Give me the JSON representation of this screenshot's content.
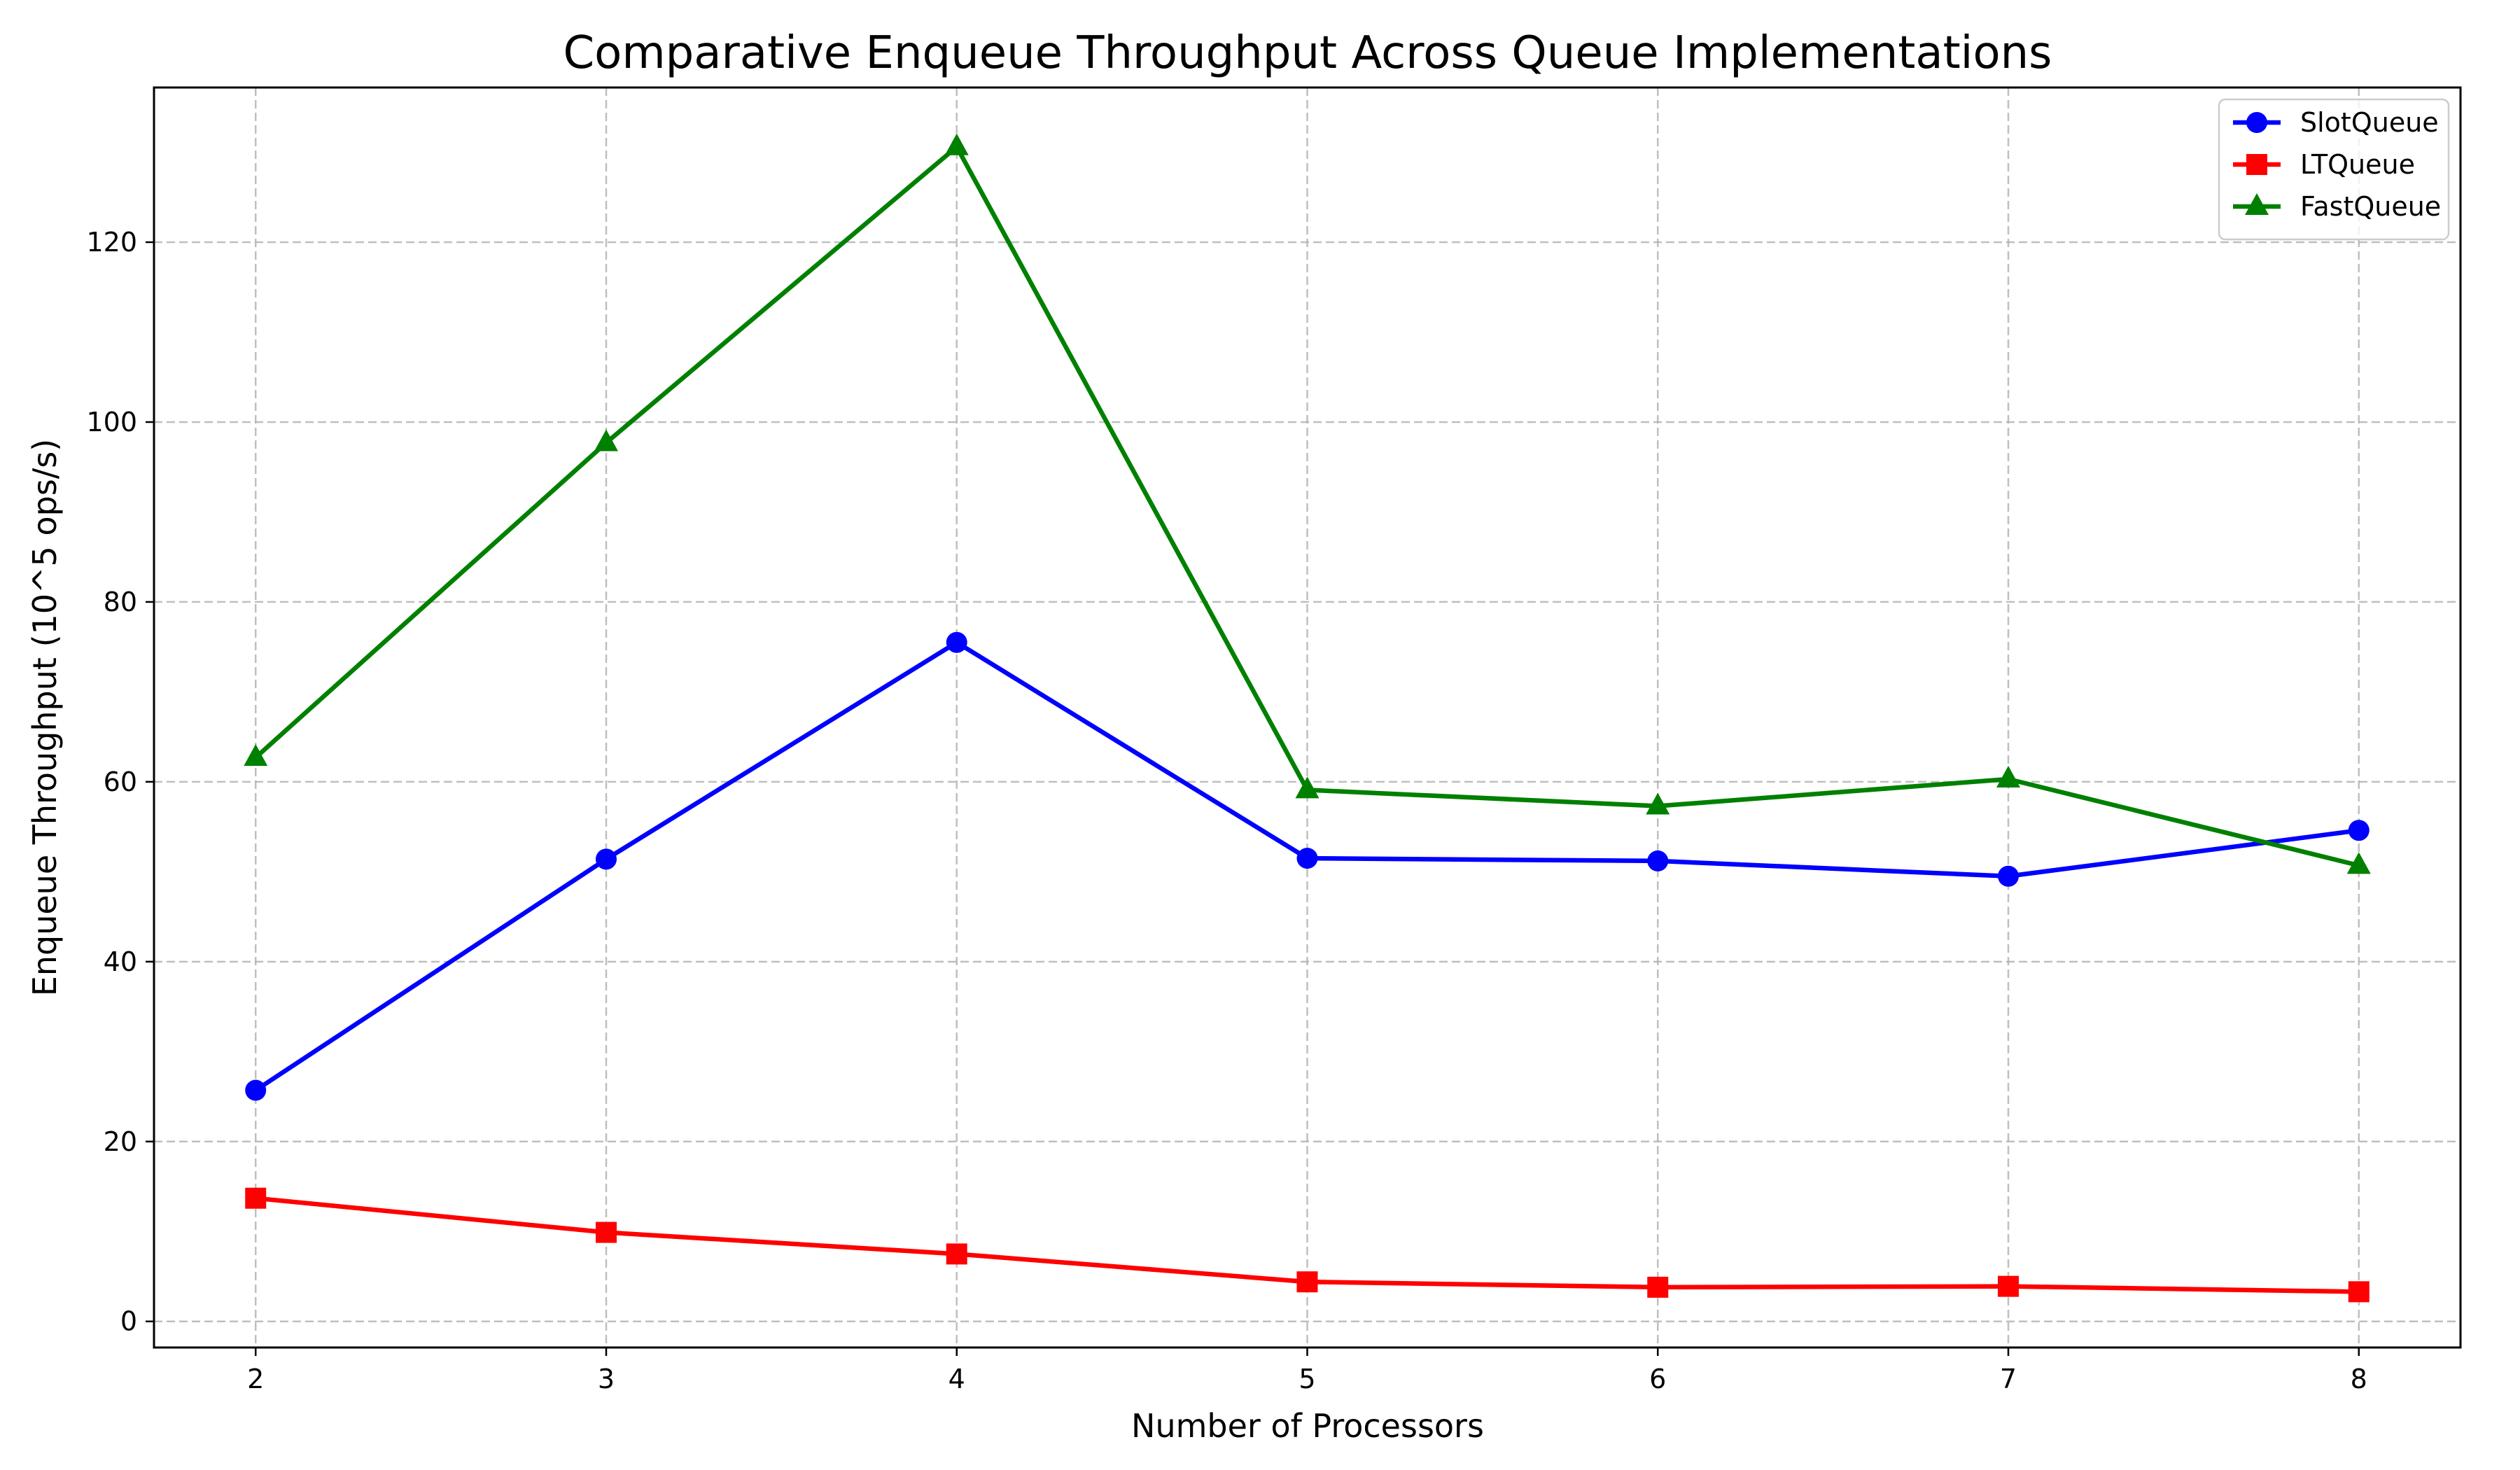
{
  "chart_data": {
    "type": "line",
    "title": "Comparative Enqueue Throughput Across Queue Implementations",
    "xlabel": "Number of Processors",
    "ylabel": "Enqueue Throughput (10^5 ops/s)",
    "x": [
      2,
      3,
      4,
      5,
      6,
      7,
      8
    ],
    "xlim": [
      1.71,
      8.29
    ],
    "ylim": [
      -2.9,
      137.2
    ],
    "yticks": [
      0,
      20,
      40,
      60,
      80,
      100,
      120
    ],
    "grid": true,
    "legend_position": "top-right",
    "series": [
      {
        "name": "SlotQueue",
        "color": "#0000ff",
        "marker": "circle",
        "values": [
          25.7,
          51.4,
          75.5,
          51.5,
          51.2,
          49.5,
          54.6
        ]
      },
      {
        "name": "LTQueue",
        "color": "#ff0000",
        "marker": "square",
        "values": [
          13.7,
          9.9,
          7.5,
          4.4,
          3.8,
          3.9,
          3.3
        ]
      },
      {
        "name": "FastQueue",
        "color": "#008000",
        "marker": "triangle",
        "values": [
          62.7,
          97.7,
          130.6,
          59.1,
          57.3,
          60.3,
          50.7
        ]
      }
    ]
  }
}
